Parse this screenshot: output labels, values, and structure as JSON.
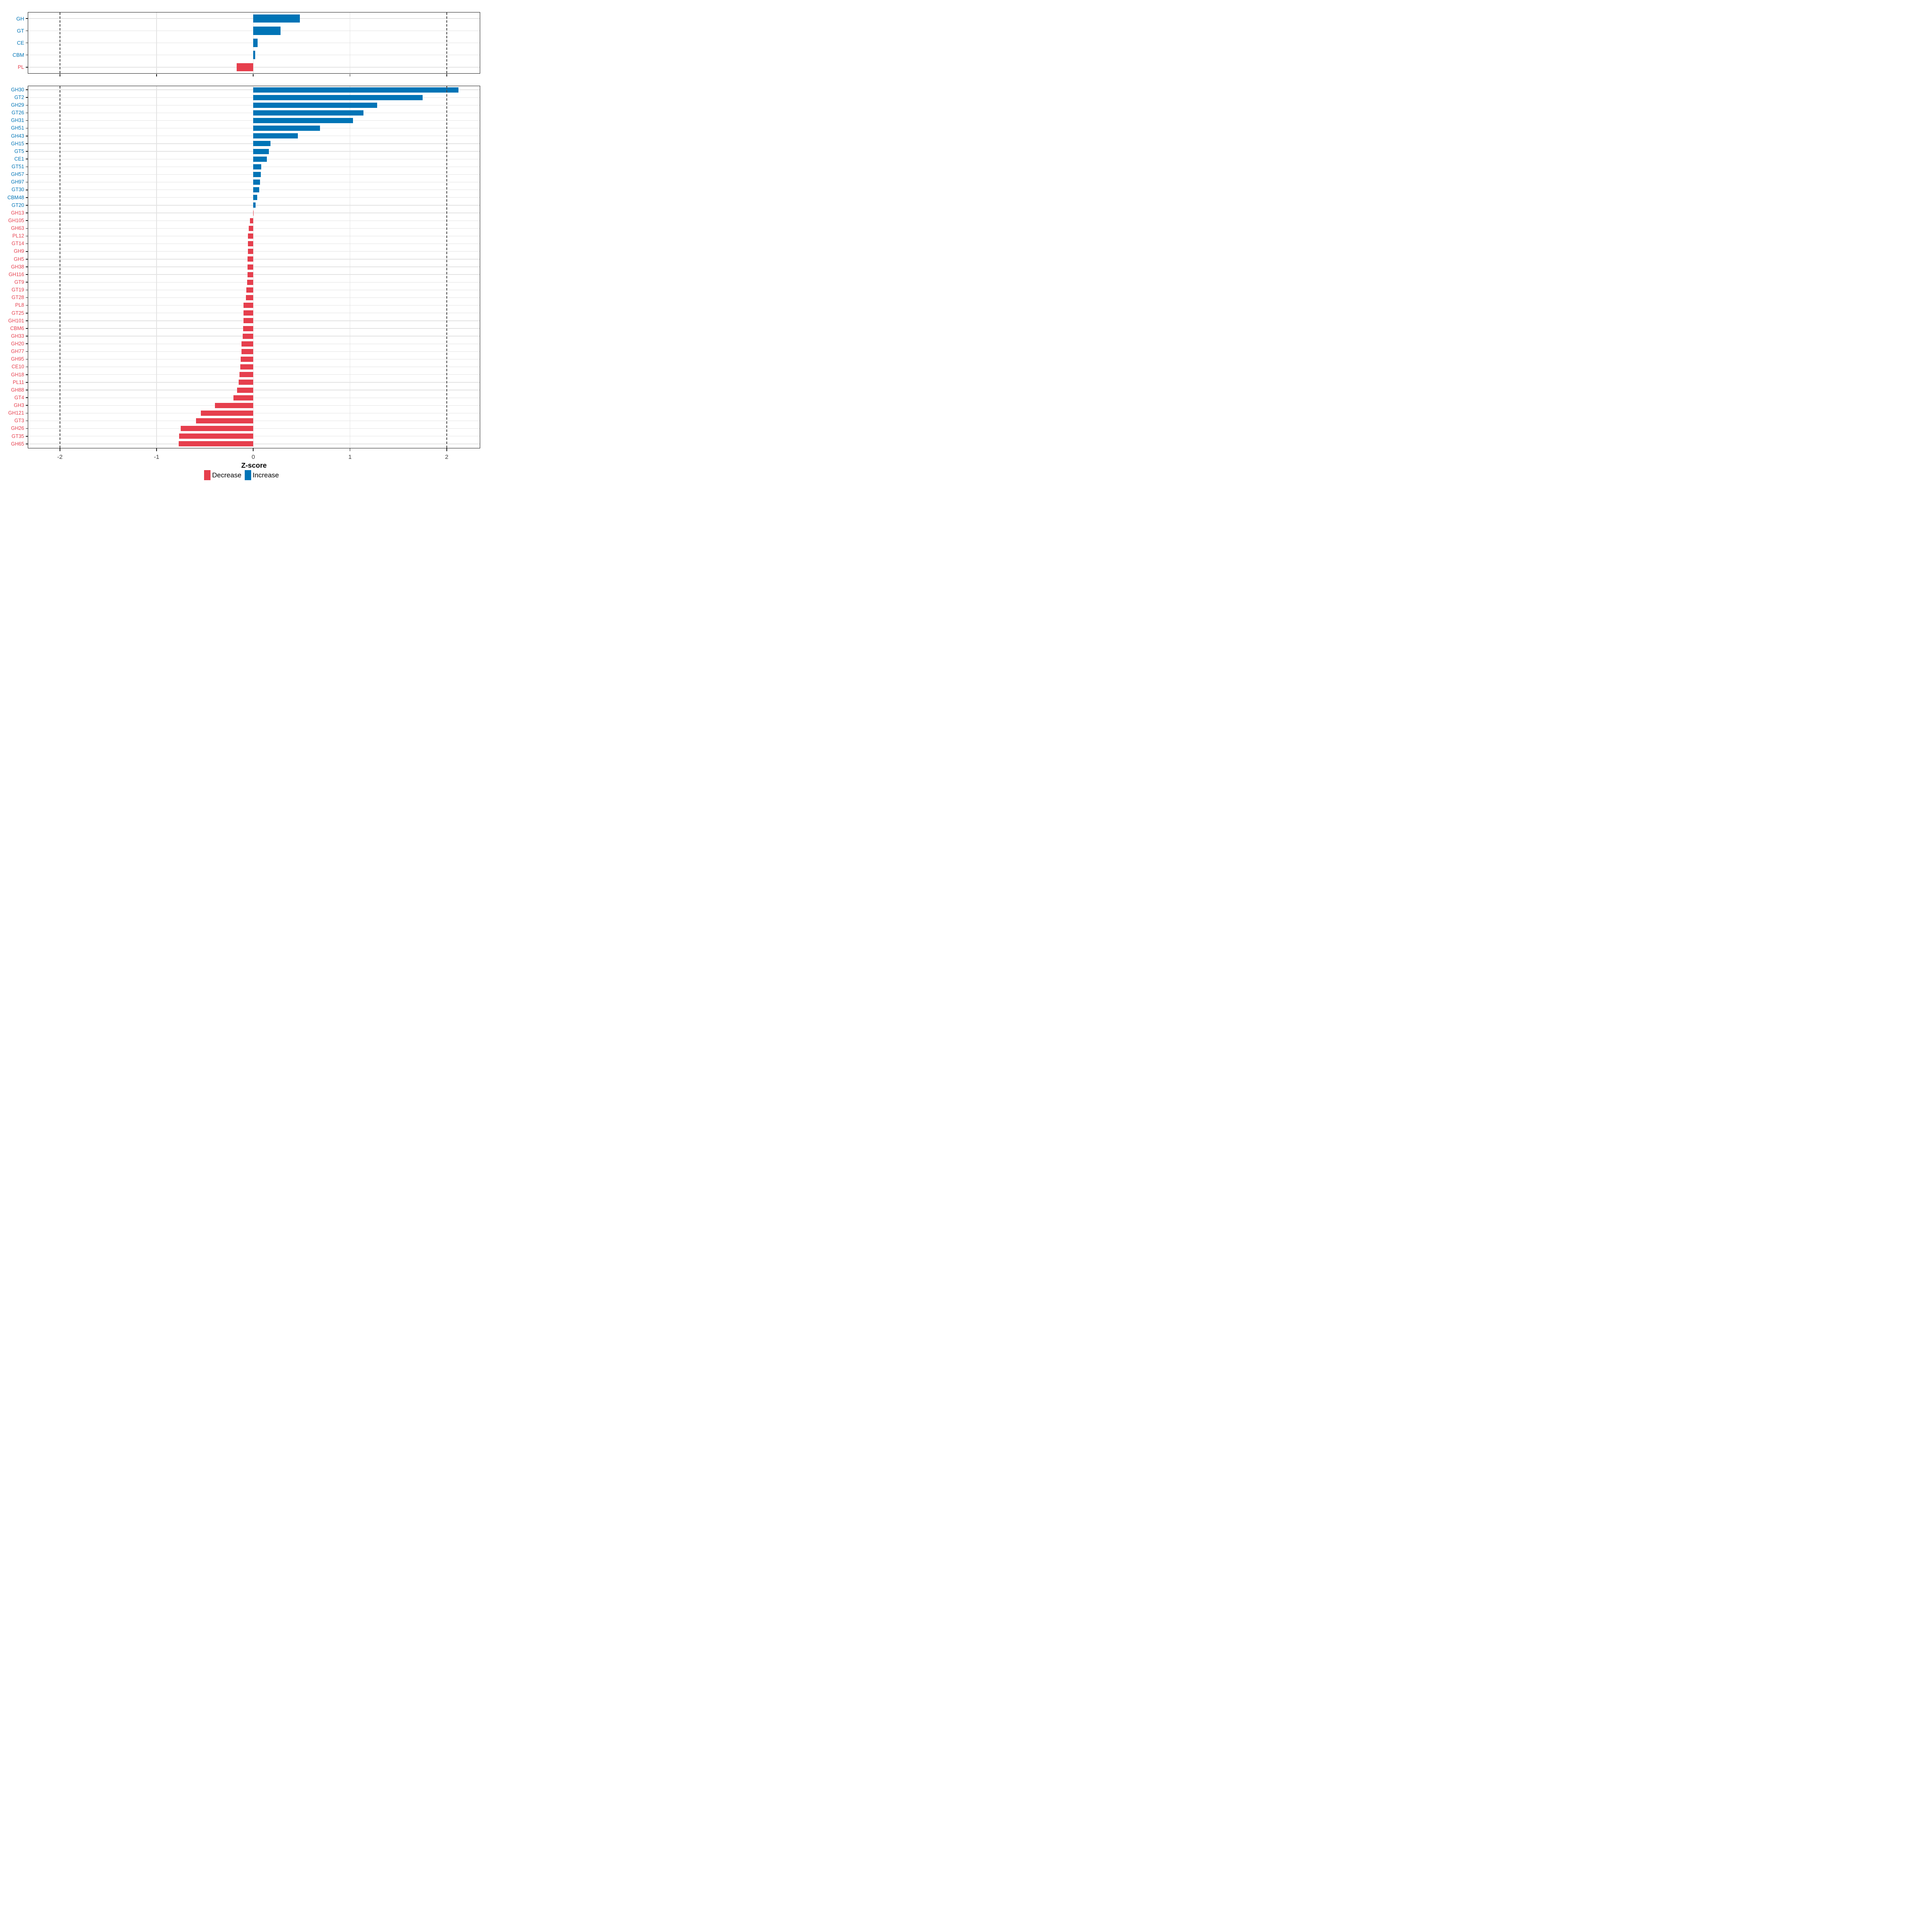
{
  "axis": {
    "xlabel": "Z-score",
    "xticks": [
      -2,
      -1,
      0,
      1,
      2
    ],
    "grid_x": [
      -1,
      0,
      1
    ],
    "dashed_x": [
      -2,
      2
    ]
  },
  "legend": {
    "position": "bottom",
    "items": [
      {
        "label": "Decrease",
        "color": "#E63F4D",
        "direction": "decrease"
      },
      {
        "label": "Increase",
        "color": "#0074B6",
        "direction": "increase"
      }
    ]
  },
  "colors": {
    "increase": "#0074B6",
    "decrease": "#E63F4D",
    "grid": "#E3E3E3",
    "dashed_line": "#4A4A4A",
    "panel_border": "#1B1B1B",
    "tick_label": "#404040"
  },
  "chart_data": [
    {
      "type": "bar",
      "panel": "top",
      "orientation": "horizontal",
      "title": "",
      "xlabel": "",
      "ylabel": "",
      "xlim": [
        -2.33,
        2.35
      ],
      "xticks": [
        -2,
        -1,
        0,
        1,
        2
      ],
      "grid_x": [
        -1,
        0,
        1
      ],
      "dashed_x": [
        -2,
        2
      ],
      "grid": "on",
      "legend_position": "none",
      "categories": [
        "GH",
        "GT",
        "CE",
        "CBM",
        "PL"
      ],
      "values": [
        0.48,
        0.28,
        0.044,
        0.018,
        -0.17
      ]
    },
    {
      "type": "bar",
      "panel": "bottom",
      "orientation": "horizontal",
      "title": "",
      "xlabel": "Z-score",
      "ylabel": "",
      "xlim": [
        -2.33,
        2.35
      ],
      "xticks": [
        -2,
        -1,
        0,
        1,
        2
      ],
      "grid_x": [
        -1,
        0,
        1
      ],
      "dashed_x": [
        -2,
        2
      ],
      "grid": "on",
      "legend_position": "bottom",
      "categories": [
        "GH30",
        "GT2",
        "GH29",
        "GT26",
        "GH31",
        "GH51",
        "GH43",
        "GH15",
        "GT5",
        "CE1",
        "GT51",
        "GH57",
        "GH97",
        "GT30",
        "CBM48",
        "GT20",
        "GH13",
        "GH105",
        "GH63",
        "PL12",
        "GT14",
        "GH9",
        "GH5",
        "GH38",
        "GH116",
        "GT9",
        "GT19",
        "GT28",
        "PL8",
        "GT25",
        "GH101",
        "CBM6",
        "GH33",
        "GH20",
        "GH77",
        "GH95",
        "CE10",
        "GH18",
        "PL11",
        "GH88",
        "GT4",
        "GH3",
        "GH121",
        "GT3",
        "GH26",
        "GT35",
        "GH65"
      ],
      "values": [
        2.12,
        1.75,
        1.28,
        1.14,
        1.03,
        0.69,
        0.46,
        0.18,
        0.16,
        0.14,
        0.081,
        0.077,
        0.071,
        0.061,
        0.041,
        0.022,
        -0.003,
        -0.034,
        -0.047,
        -0.056,
        -0.057,
        -0.057,
        -0.058,
        -0.058,
        -0.059,
        -0.065,
        -0.073,
        -0.078,
        -0.1,
        -0.101,
        -0.102,
        -0.104,
        -0.108,
        -0.12,
        -0.123,
        -0.13,
        -0.134,
        -0.142,
        -0.152,
        -0.167,
        -0.207,
        -0.396,
        -0.541,
        -0.594,
        -0.751,
        -0.768,
        -0.77
      ]
    }
  ]
}
